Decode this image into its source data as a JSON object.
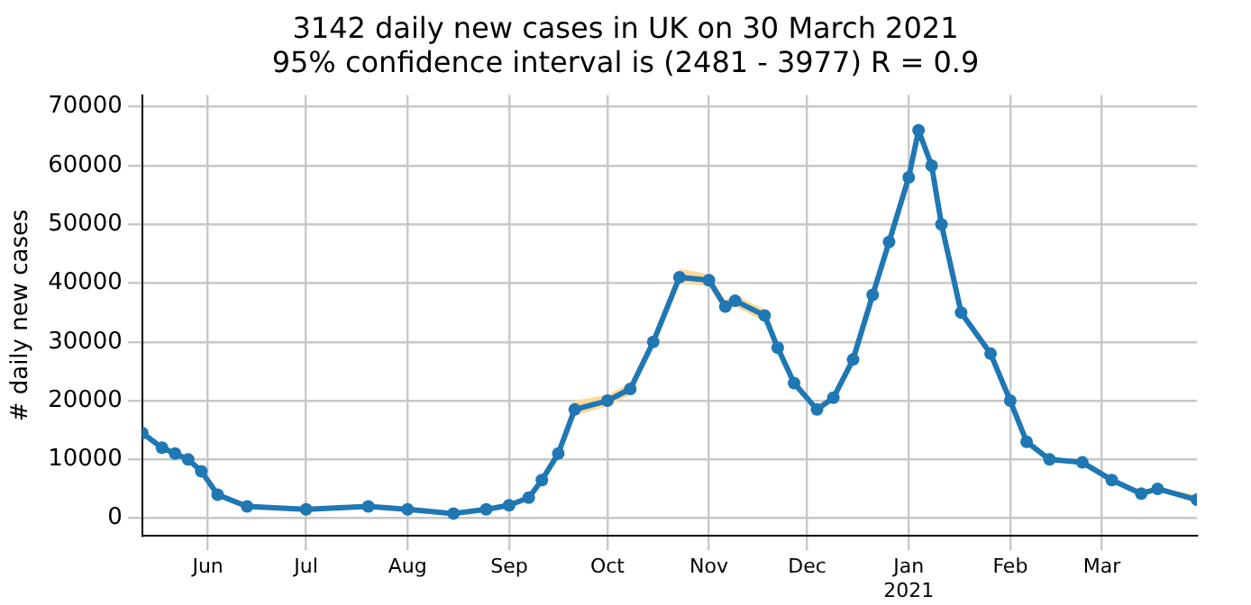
{
  "chart_data": {
    "type": "line",
    "title": "3142 daily new cases in UK on 30 March 2021",
    "subtitle": "95% confidence interval is (2481 - 3977) R = 0.9",
    "ylabel": "# daily new cases",
    "x": [
      "2020-05-12",
      "2020-05-18",
      "2020-05-22",
      "2020-05-26",
      "2020-05-30",
      "2020-06-04",
      "2020-06-13",
      "2020-07-01",
      "2020-07-20",
      "2020-08-01",
      "2020-08-15",
      "2020-08-25",
      "2020-09-01",
      "2020-09-07",
      "2020-09-11",
      "2020-09-16",
      "2020-09-21",
      "2020-10-01",
      "2020-10-08",
      "2020-10-15",
      "2020-10-23",
      "2020-11-01",
      "2020-11-06",
      "2020-11-09",
      "2020-11-18",
      "2020-11-22",
      "2020-11-27",
      "2020-12-04",
      "2020-12-09",
      "2020-12-15",
      "2020-12-21",
      "2020-12-26",
      "2021-01-01",
      "2021-01-04",
      "2021-01-08",
      "2021-01-11",
      "2021-01-17",
      "2021-01-26",
      "2021-02-01",
      "2021-02-06",
      "2021-02-13",
      "2021-02-23",
      "2021-03-04",
      "2021-03-13",
      "2021-03-18",
      "2021-03-30"
    ],
    "series": [
      {
        "color": "#1f77b4",
        "values": [
          14500,
          12000,
          11000,
          10000,
          8000,
          4000,
          2000,
          1500,
          2000,
          1500,
          800,
          1500,
          2200,
          3500,
          6500,
          11000,
          18500,
          20000,
          22000,
          30000,
          41000,
          40500,
          36000,
          37000,
          34500,
          29000,
          23000,
          18500,
          20500,
          27000,
          38000,
          47000,
          58000,
          66000,
          60000,
          50000,
          35000,
          28000,
          20000,
          13000,
          10000,
          9500,
          6500,
          4200,
          5000,
          3142
        ],
        "lower": [
          14000,
          11600,
          10600,
          9600,
          7700,
          3800,
          1900,
          1400,
          1900,
          1400,
          700,
          1400,
          2100,
          3300,
          6200,
          10500,
          17500,
          19000,
          21000,
          29000,
          40000,
          39500,
          35000,
          36000,
          33500,
          28000,
          22200,
          18000,
          20000,
          26300,
          37000,
          46000,
          57000,
          65000,
          59000,
          49200,
          34400,
          27500,
          19600,
          12700,
          9700,
          9200,
          6300,
          4000,
          4800,
          2481
        ],
        "upper": [
          15000,
          12400,
          11400,
          10400,
          8300,
          4200,
          2100,
          1600,
          2100,
          1600,
          900,
          1600,
          2300,
          3700,
          6800,
          11500,
          20000,
          21000,
          23000,
          31000,
          42500,
          41500,
          37000,
          38000,
          35500,
          30000,
          23800,
          19000,
          21000,
          27700,
          39000,
          48000,
          59000,
          67000,
          61000,
          50800,
          35600,
          28500,
          20400,
          13300,
          10300,
          9800,
          6700,
          4400,
          5200,
          3977
        ]
      }
    ],
    "xlim": [
      "2020-05-12",
      "2021-03-30"
    ],
    "xticks": [
      {
        "value": "2020-06-01",
        "label": "Jun"
      },
      {
        "value": "2020-07-01",
        "label": "Jul"
      },
      {
        "value": "2020-08-01",
        "label": "Aug"
      },
      {
        "value": "2020-09-01",
        "label": "Sep"
      },
      {
        "value": "2020-10-01",
        "label": "Oct"
      },
      {
        "value": "2020-11-01",
        "label": "Nov"
      },
      {
        "value": "2020-12-01",
        "label": "Dec"
      },
      {
        "value": "2021-01-01",
        "label": "Jan\n2021"
      },
      {
        "value": "2021-02-01",
        "label": "Feb"
      },
      {
        "value": "2021-03-01",
        "label": "Mar"
      }
    ],
    "ylim": [
      -3000,
      72000
    ],
    "yticks": [
      0,
      10000,
      20000,
      30000,
      40000,
      50000,
      60000,
      70000
    ],
    "grid": true,
    "legend": false,
    "marker": "circle",
    "line_style": "solid"
  }
}
